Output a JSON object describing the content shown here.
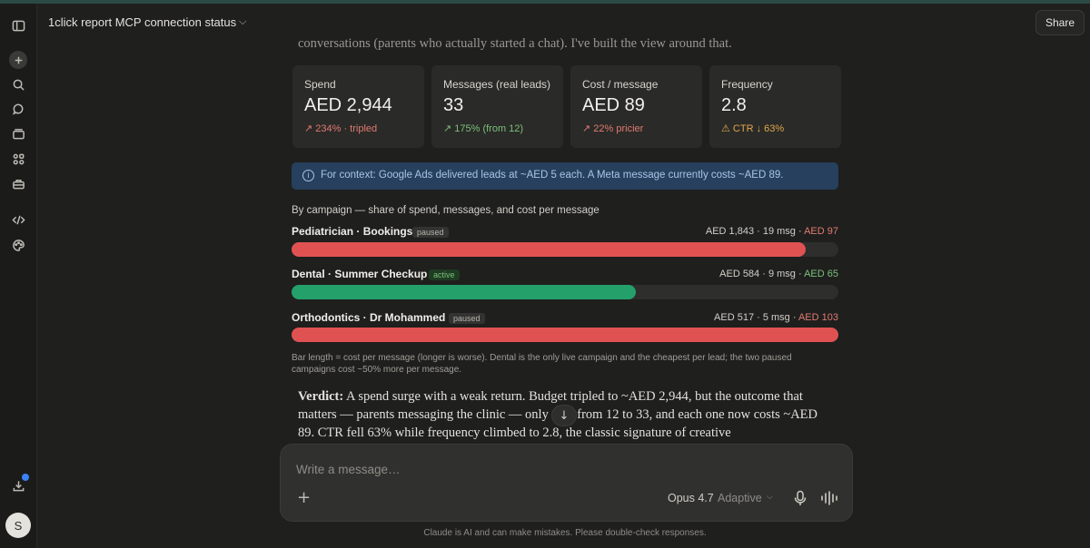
{
  "header": {
    "title": "1click report MCP connection status",
    "share_label": "Share"
  },
  "sidebar": {
    "icons": [
      "sidebar-toggle-icon",
      "new-chat-icon",
      "search-icon",
      "chats-icon",
      "projects-icon",
      "artifacts-icon",
      "toolbox-icon",
      "code-icon",
      "palette-icon",
      "download-icon"
    ],
    "avatar_letter": "S"
  },
  "message": {
    "lead_fragment": "conversations (parents who actually started a chat). I've built the view around that.",
    "kpis": [
      {
        "label": "Spend",
        "value": "AED 2,944",
        "sub": "↗ 234% · tripled",
        "tone": "red"
      },
      {
        "label": "Messages (real leads)",
        "value": "33",
        "sub": "↗ 175% (from 12)",
        "tone": "green"
      },
      {
        "label": "Cost / message",
        "value": "AED 89",
        "sub": "↗ 22% pricier",
        "tone": "red"
      },
      {
        "label": "Frequency",
        "value": "2.8",
        "sub": "⚠ CTR ↓ 63%",
        "tone": "amber"
      }
    ],
    "banner": "For context: Google Ads delivered leads at ~AED 5 each. A Meta message currently costs ~AED 89.",
    "campaign_heading": "By campaign — share of spend, messages, and cost per message",
    "campaigns": [
      {
        "name": "Pediatrician · Bookings",
        "status": "paused",
        "spend": "AED 1,843 · 19 msg · ",
        "cpm": "AED 97",
        "bar_fraction": 0.94,
        "color": "#e05252"
      },
      {
        "name": "Dental · Summer Checkup",
        "status": "active",
        "spend": "AED 584 · 9 msg · ",
        "cpm": "AED 65",
        "bar_fraction": 0.63,
        "color": "#24a06b"
      },
      {
        "name": "Orthodontics · Dr Mohammed",
        "status": "paused",
        "spend": "AED 517 · 5 msg · ",
        "cpm": "AED 103",
        "bar_fraction": 1.0,
        "color": "#e05252"
      }
    ],
    "note": "Bar length = cost per message (longer is worse). Dental is the only live campaign and the cheapest per lead; the two paused campaigns cost ~50% more per message.",
    "verdict_label": "Verdict:",
    "verdict_text": " A spend surge with a weak return. Budget tripled to ~AED 2,944, but the outcome that matters — parents messaging the clinic — only rose from 12 to 33, and each one now costs ~AED 89. CTR fell 63% while frequency climbed to 2.8, the classic signature of creative"
  },
  "composer": {
    "placeholder": "Write a message…",
    "model": "Opus 4.7",
    "mode": "Adaptive"
  },
  "disclaimer": "Claude is AI and can make mistakes. Please double-check responses."
}
